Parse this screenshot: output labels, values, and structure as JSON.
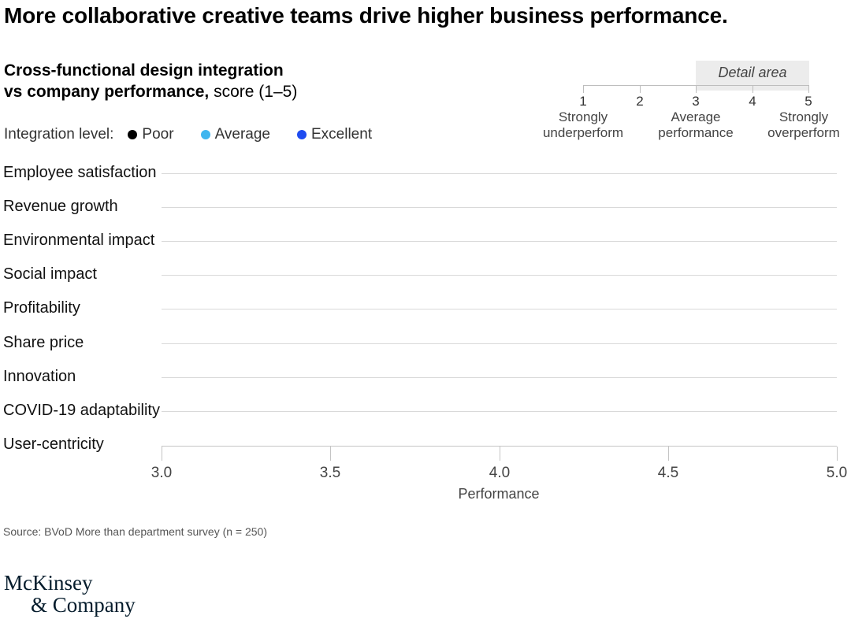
{
  "headline": "More collaborative creative teams drive higher business performance.",
  "subtitle": {
    "line1_bold": "Cross-functional design integration",
    "line2_bold": "vs company performance,",
    "line2_rest": " score (1–5)"
  },
  "legend": {
    "title": "Integration level:",
    "items": [
      {
        "label": "Poor",
        "color": "#000000"
      },
      {
        "label": "Average",
        "color": "#3fb6ef"
      },
      {
        "label": "Excellent",
        "color": "#1f4cf0"
      }
    ]
  },
  "scale_key": {
    "detail_label": "Detail area",
    "numbers": [
      "1",
      "2",
      "3",
      "4",
      "5"
    ],
    "descriptions": [
      {
        "text": "Strongly\nunderperform",
        "at": 1
      },
      {
        "text": "Average\nperformance",
        "at": 3
      },
      {
        "text": "Strongly\noverperform",
        "at": 5
      }
    ]
  },
  "chart_data": {
    "type": "scatter",
    "title": "Cross-functional design integration vs company performance, score (1–5)",
    "categories": [
      "Employee satisfaction",
      "Revenue growth",
      "Environmental impact",
      "Social impact",
      "Profitability",
      "Share price",
      "Innovation",
      "COVID-19 adaptability",
      "User-centricity"
    ],
    "series": [
      {
        "name": "Poor",
        "values": []
      },
      {
        "name": "Average",
        "values": []
      },
      {
        "name": "Excellent",
        "values": []
      }
    ],
    "xlabel": "Performance",
    "xlim": [
      3.0,
      5.0
    ],
    "x_ticks": [
      "3.0",
      "3.5",
      "4.0",
      "4.5",
      "5.0"
    ],
    "grid": true,
    "legend_position": "top-left"
  },
  "source": "Source: BVoD More than department survey (n = 250)",
  "logo": {
    "line1": "McKinsey",
    "line2": "& Company"
  }
}
